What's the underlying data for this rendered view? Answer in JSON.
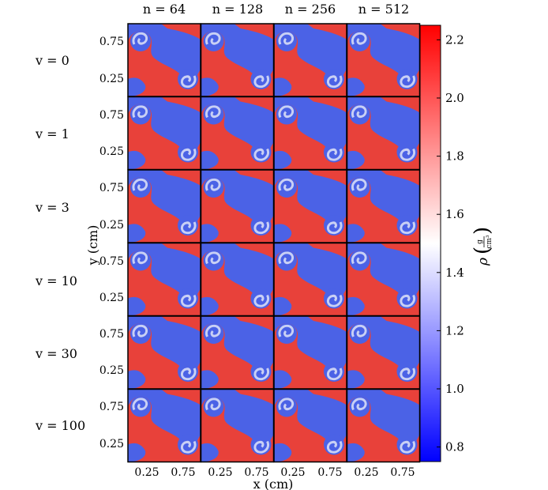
{
  "chart_data": {
    "type": "heatmap",
    "columns": [
      "n = 64",
      "n = 128",
      "n = 256",
      "n = 512"
    ],
    "rows": [
      "v = 0",
      "v = 1",
      "v = 3",
      "v = 10",
      "v = 30",
      "v = 100"
    ],
    "xlabel": "x (cm)",
    "ylabel": "y (cm)",
    "x_ticks": [
      "0.25",
      "0.75"
    ],
    "y_ticks": [
      "0.75",
      "0.25"
    ],
    "xlim": [
      0,
      1
    ],
    "ylim": [
      0,
      1
    ],
    "colorbar": {
      "label": "ρ",
      "unit_numerator": "g",
      "unit_denominator": "cm³",
      "min": 0.75,
      "max": 2.25,
      "ticks": [
        "2.2",
        "2.0",
        "1.8",
        "1.6",
        "1.4",
        "1.2",
        "1.0",
        "0.8"
      ],
      "colors": {
        "low": "#0000ff",
        "mid": "#ffffff",
        "high": "#ff0000"
      }
    },
    "panel_colors": {
      "dense": "#e8413a",
      "light": "#4b62e6",
      "vortex_core": "#c9d0f5"
    }
  }
}
